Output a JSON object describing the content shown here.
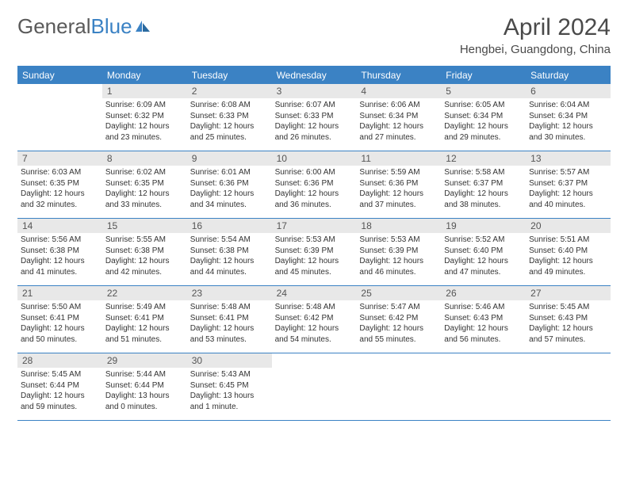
{
  "logo": {
    "text_gray": "General",
    "text_blue": "Blue"
  },
  "title": "April 2024",
  "location": "Hengbei, Guangdong, China",
  "colors": {
    "header_bg": "#3b82c4",
    "header_text": "#ffffff",
    "daynum_bg": "#e8e8e8",
    "daynum_text": "#555555",
    "body_text": "#333333",
    "title_text": "#4a4a4a",
    "border": "#3b82c4"
  },
  "day_headers": [
    "Sunday",
    "Monday",
    "Tuesday",
    "Wednesday",
    "Thursday",
    "Friday",
    "Saturday"
  ],
  "weeks": [
    [
      null,
      {
        "num": "1",
        "sunrise": "6:09 AM",
        "sunset": "6:32 PM",
        "daylight": "12 hours and 23 minutes."
      },
      {
        "num": "2",
        "sunrise": "6:08 AM",
        "sunset": "6:33 PM",
        "daylight": "12 hours and 25 minutes."
      },
      {
        "num": "3",
        "sunrise": "6:07 AM",
        "sunset": "6:33 PM",
        "daylight": "12 hours and 26 minutes."
      },
      {
        "num": "4",
        "sunrise": "6:06 AM",
        "sunset": "6:34 PM",
        "daylight": "12 hours and 27 minutes."
      },
      {
        "num": "5",
        "sunrise": "6:05 AM",
        "sunset": "6:34 PM",
        "daylight": "12 hours and 29 minutes."
      },
      {
        "num": "6",
        "sunrise": "6:04 AM",
        "sunset": "6:34 PM",
        "daylight": "12 hours and 30 minutes."
      }
    ],
    [
      {
        "num": "7",
        "sunrise": "6:03 AM",
        "sunset": "6:35 PM",
        "daylight": "12 hours and 32 minutes."
      },
      {
        "num": "8",
        "sunrise": "6:02 AM",
        "sunset": "6:35 PM",
        "daylight": "12 hours and 33 minutes."
      },
      {
        "num": "9",
        "sunrise": "6:01 AM",
        "sunset": "6:36 PM",
        "daylight": "12 hours and 34 minutes."
      },
      {
        "num": "10",
        "sunrise": "6:00 AM",
        "sunset": "6:36 PM",
        "daylight": "12 hours and 36 minutes."
      },
      {
        "num": "11",
        "sunrise": "5:59 AM",
        "sunset": "6:36 PM",
        "daylight": "12 hours and 37 minutes."
      },
      {
        "num": "12",
        "sunrise": "5:58 AM",
        "sunset": "6:37 PM",
        "daylight": "12 hours and 38 minutes."
      },
      {
        "num": "13",
        "sunrise": "5:57 AM",
        "sunset": "6:37 PM",
        "daylight": "12 hours and 40 minutes."
      }
    ],
    [
      {
        "num": "14",
        "sunrise": "5:56 AM",
        "sunset": "6:38 PM",
        "daylight": "12 hours and 41 minutes."
      },
      {
        "num": "15",
        "sunrise": "5:55 AM",
        "sunset": "6:38 PM",
        "daylight": "12 hours and 42 minutes."
      },
      {
        "num": "16",
        "sunrise": "5:54 AM",
        "sunset": "6:38 PM",
        "daylight": "12 hours and 44 minutes."
      },
      {
        "num": "17",
        "sunrise": "5:53 AM",
        "sunset": "6:39 PM",
        "daylight": "12 hours and 45 minutes."
      },
      {
        "num": "18",
        "sunrise": "5:53 AM",
        "sunset": "6:39 PM",
        "daylight": "12 hours and 46 minutes."
      },
      {
        "num": "19",
        "sunrise": "5:52 AM",
        "sunset": "6:40 PM",
        "daylight": "12 hours and 47 minutes."
      },
      {
        "num": "20",
        "sunrise": "5:51 AM",
        "sunset": "6:40 PM",
        "daylight": "12 hours and 49 minutes."
      }
    ],
    [
      {
        "num": "21",
        "sunrise": "5:50 AM",
        "sunset": "6:41 PM",
        "daylight": "12 hours and 50 minutes."
      },
      {
        "num": "22",
        "sunrise": "5:49 AM",
        "sunset": "6:41 PM",
        "daylight": "12 hours and 51 minutes."
      },
      {
        "num": "23",
        "sunrise": "5:48 AM",
        "sunset": "6:41 PM",
        "daylight": "12 hours and 53 minutes."
      },
      {
        "num": "24",
        "sunrise": "5:48 AM",
        "sunset": "6:42 PM",
        "daylight": "12 hours and 54 minutes."
      },
      {
        "num": "25",
        "sunrise": "5:47 AM",
        "sunset": "6:42 PM",
        "daylight": "12 hours and 55 minutes."
      },
      {
        "num": "26",
        "sunrise": "5:46 AM",
        "sunset": "6:43 PM",
        "daylight": "12 hours and 56 minutes."
      },
      {
        "num": "27",
        "sunrise": "5:45 AM",
        "sunset": "6:43 PM",
        "daylight": "12 hours and 57 minutes."
      }
    ],
    [
      {
        "num": "28",
        "sunrise": "5:45 AM",
        "sunset": "6:44 PM",
        "daylight": "12 hours and 59 minutes."
      },
      {
        "num": "29",
        "sunrise": "5:44 AM",
        "sunset": "6:44 PM",
        "daylight": "13 hours and 0 minutes."
      },
      {
        "num": "30",
        "sunrise": "5:43 AM",
        "sunset": "6:45 PM",
        "daylight": "13 hours and 1 minute."
      },
      null,
      null,
      null,
      null
    ]
  ]
}
